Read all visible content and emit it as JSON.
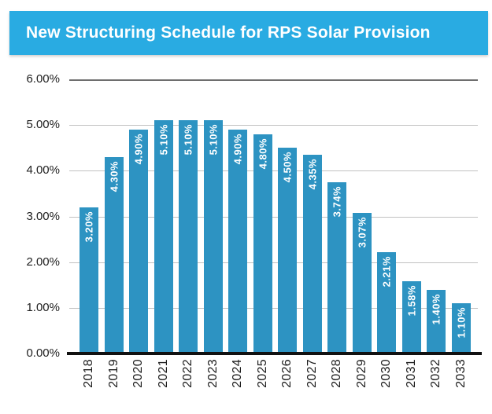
{
  "title": "New Structuring Schedule for RPS Solar Provision",
  "colors": {
    "banner": "#29ABE2",
    "bar": "#2D93C2",
    "bar_label": "#FFFFFF",
    "gridline": "#C2C2C2",
    "top_gridline": "#6E6E6E",
    "axis_line": "#111111",
    "tick_text": "#1D1D1D"
  },
  "chart_data": {
    "type": "bar",
    "title": "New Structuring Schedule for RPS Solar Provision",
    "categories": [
      "2018",
      "2019",
      "2020",
      "2021",
      "2022",
      "2023",
      "2024",
      "2025",
      "2026",
      "2027",
      "2028",
      "2029",
      "2030",
      "2031",
      "2032",
      "2033"
    ],
    "values": [
      3.2,
      4.3,
      4.9,
      5.1,
      5.1,
      5.1,
      4.9,
      4.8,
      4.5,
      4.35,
      3.74,
      3.07,
      2.21,
      1.58,
      1.4,
      1.1
    ],
    "value_labels": [
      "3.20%",
      "4.30%",
      "4.90%",
      "5.10%",
      "5.10%",
      "5.10%",
      "4.90%",
      "4.80%",
      "4.50%",
      "4.35%",
      "3.74%",
      "3.07%",
      "2.21%",
      "1.58%",
      "1.40%",
      "1.10%"
    ],
    "xlabel": "",
    "ylabel": "",
    "ylim": [
      0,
      6
    ],
    "ytick_labels": [
      "0.00%",
      "1.00%",
      "2.00%",
      "3.00%",
      "4.00%",
      "5.00%",
      "6.00%"
    ],
    "grid": true,
    "legend_position": "none"
  }
}
